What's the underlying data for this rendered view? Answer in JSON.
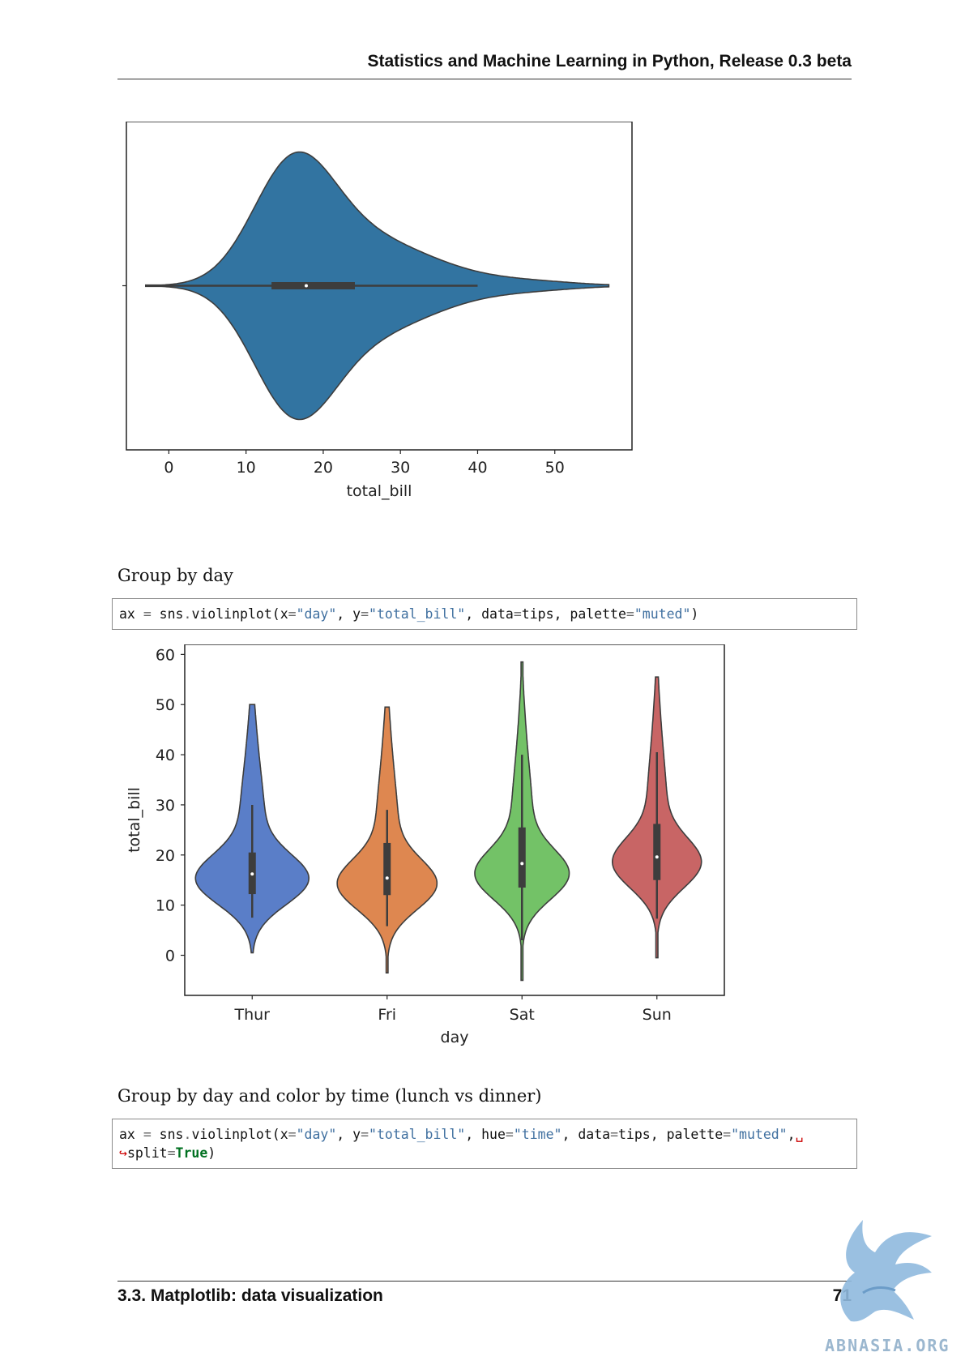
{
  "header": {
    "title": "Statistics and Machine Learning in Python, Release 0.3 beta"
  },
  "sections": [
    {
      "text": "Group by day"
    },
    {
      "text": "Group by day and color by time (lunch vs dinner)"
    }
  ],
  "code_blocks": [
    {
      "line1": {
        "prefix": "ax ",
        "eq1": "=",
        "fn": " sns",
        "dot": ".",
        "call": "violinplot(x",
        "eq2": "=",
        "s1": "\"day\"",
        "mid1": ", y",
        "eq3": "=",
        "s2": "\"total_bill\"",
        "mid2": ", data",
        "eq4": "=",
        "mid3": "tips, palette",
        "eq5": "=",
        "s3": "\"muted\"",
        "end": ")"
      }
    },
    {
      "line1": {
        "prefix": "ax ",
        "eq1": "=",
        "fn": " sns",
        "dot": ".",
        "call": "violinplot(x",
        "eq2": "=",
        "s1": "\"day\"",
        "mid1": ", y",
        "eq3": "=",
        "s2": "\"total_bill\"",
        "mid2": ", hue",
        "eq4": "=",
        "s3": "\"time\"",
        "mid3": ", data",
        "eq5": "=",
        "mid4": "tips, palette",
        "eq6": "=",
        "s4": "\"muted\"",
        "end": ",",
        "cont": "␣"
      },
      "line2": {
        "arrow": "↪",
        "text": "split",
        "eq": "=",
        "kw": "True",
        "end": ")"
      }
    }
  ],
  "chart_data": [
    {
      "type": "violin",
      "orientation": "horizontal",
      "xlabel": "total_bill",
      "ylabel": "",
      "xlim": [
        -5.5,
        60
      ],
      "xticks": [
        0,
        10,
        20,
        30,
        40,
        50
      ],
      "color": "#3274a1",
      "whisker": [
        -3,
        40
      ],
      "box": [
        13.3,
        24.1
      ],
      "median": 17.8,
      "range": [
        -3,
        57
      ]
    },
    {
      "type": "violin",
      "orientation": "vertical",
      "xlabel": "day",
      "ylabel": "total_bill",
      "ylim": [
        -8,
        62
      ],
      "yticks": [
        0,
        10,
        20,
        30,
        40,
        50,
        60
      ],
      "categories": [
        "Thur",
        "Fri",
        "Sat",
        "Sun"
      ],
      "colors": [
        "#4878cf",
        "#d65f1f",
        "#6acc65",
        "#d65f5f"
      ],
      "fill_colors": [
        "#5a7ec8",
        "#de8750",
        "#73c267",
        "#c86565"
      ],
      "series": [
        {
          "name": "Thur",
          "range": [
            0.5,
            50
          ],
          "box": [
            12.2,
            20.5
          ],
          "median": 16.2,
          "whisker": [
            7.5,
            30
          ],
          "peak": 15,
          "width": 0.42
        },
        {
          "name": "Fri",
          "range": [
            -3.5,
            49.5
          ],
          "box": [
            12,
            22.4
          ],
          "median": 15.4,
          "whisker": [
            5.8,
            29
          ],
          "peak": 14,
          "width": 0.37
        },
        {
          "name": "Sat",
          "range": [
            -5,
            58.5
          ],
          "box": [
            13.5,
            25.5
          ],
          "median": 18.3,
          "whisker": [
            3,
            40
          ],
          "peak": 16,
          "width": 0.35
        },
        {
          "name": "Sun",
          "range": [
            -0.5,
            55.5
          ],
          "box": [
            15,
            26.2
          ],
          "median": 19.6,
          "whisker": [
            7.3,
            40.5
          ],
          "peak": 18.3,
          "width": 0.33
        }
      ]
    }
  ],
  "footer": {
    "section": "3.3.  Matplotlib: data visualization",
    "page": "71"
  },
  "watermark": {
    "text": "ABNASIA.ORG",
    "icon": "griffin-logo-icon",
    "color": "#8fb9de"
  }
}
